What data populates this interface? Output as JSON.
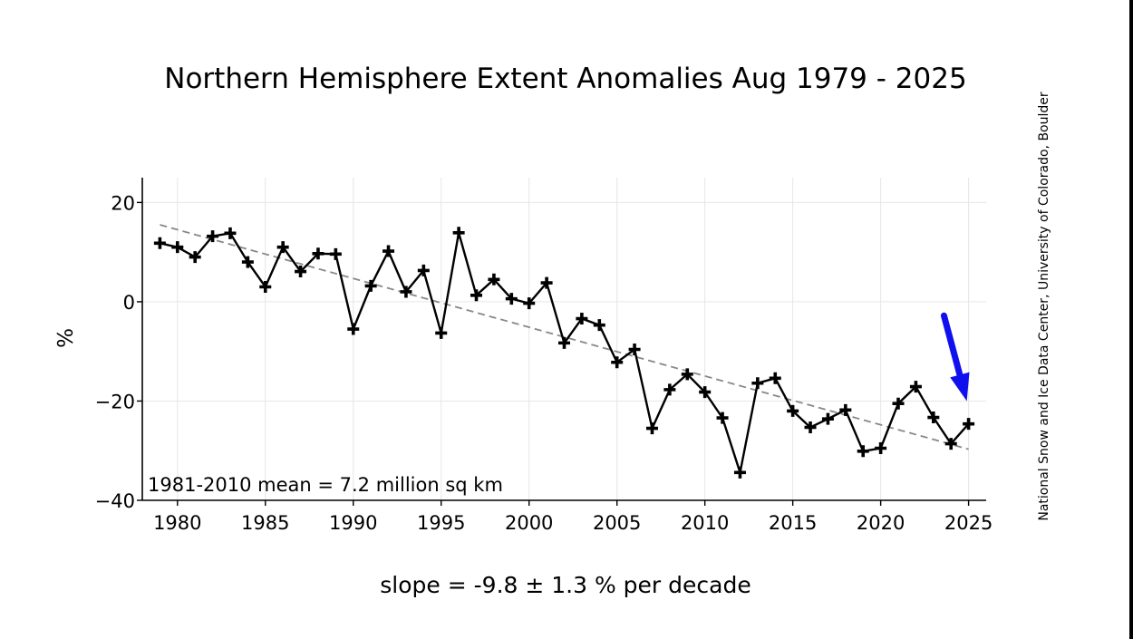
{
  "chart_data": {
    "type": "line",
    "title": "Northern Hemisphere Extent Anomalies Aug 1979 - 2025",
    "ylabel": "%",
    "xlabel": "slope = -9.8 ± 1.3 % per decade",
    "annotation": "1981-2010 mean = 7.2 million sq km",
    "credit": "National Snow and Ice Data Center, University of Colorado, Boulder",
    "xlim": [
      1978,
      2026
    ],
    "ylim": [
      -40,
      25
    ],
    "xticks": [
      1980,
      1985,
      1990,
      1995,
      2000,
      2005,
      2010,
      2015,
      2020,
      2025
    ],
    "xtick_labels": [
      "1980",
      "1985",
      "1990",
      "1995",
      "2000",
      "2005",
      "2010",
      "2015",
      "2020",
      "2025"
    ],
    "yticks": [
      -40,
      -20,
      0,
      20
    ],
    "ytick_labels": [
      "−40",
      "−20",
      "0",
      "20"
    ],
    "grid": true,
    "colors": {
      "line": "#000000",
      "trend": "#888888",
      "arrow": "#1010ee",
      "grid": "#e6e6e6"
    },
    "series": [
      {
        "x": [
          1979,
          1980,
          1981,
          1982,
          1983,
          1984,
          1985,
          1986,
          1987,
          1988,
          1989,
          1990,
          1991,
          1992,
          1993,
          1994,
          1995,
          1996,
          1997,
          1998,
          1999,
          2000,
          2001,
          2002,
          2003,
          2004,
          2005,
          2006,
          2007,
          2008,
          2009,
          2010,
          2011,
          2012,
          2013,
          2014,
          2015,
          2016,
          2017,
          2018,
          2019,
          2020,
          2021,
          2022,
          2023,
          2024,
          2025
        ],
        "values": [
          11.8,
          11.0,
          9.0,
          13.2,
          13.8,
          8.0,
          3.0,
          11.0,
          6.1,
          9.7,
          9.6,
          -5.5,
          3.2,
          10.2,
          2.0,
          6.3,
          -6.3,
          13.9,
          1.3,
          4.5,
          0.6,
          -0.3,
          3.8,
          -8.3,
          -3.4,
          -4.7,
          -12.2,
          -9.6,
          -25.5,
          -17.7,
          -14.6,
          -18.2,
          -23.4,
          -34.4,
          -16.4,
          -15.4,
          -22.0,
          -25.3,
          -23.6,
          -21.8,
          -30.1,
          -29.5,
          -20.5,
          -17.1,
          -23.3,
          -28.6,
          -24.6
        ]
      }
    ],
    "trendline": {
      "x": [
        1979,
        2025
      ],
      "values": [
        15.5,
        -29.7
      ]
    },
    "arrow": {
      "from": [
        2023.6,
        -2.8
      ],
      "to": [
        2024.9,
        -20.0
      ]
    }
  }
}
